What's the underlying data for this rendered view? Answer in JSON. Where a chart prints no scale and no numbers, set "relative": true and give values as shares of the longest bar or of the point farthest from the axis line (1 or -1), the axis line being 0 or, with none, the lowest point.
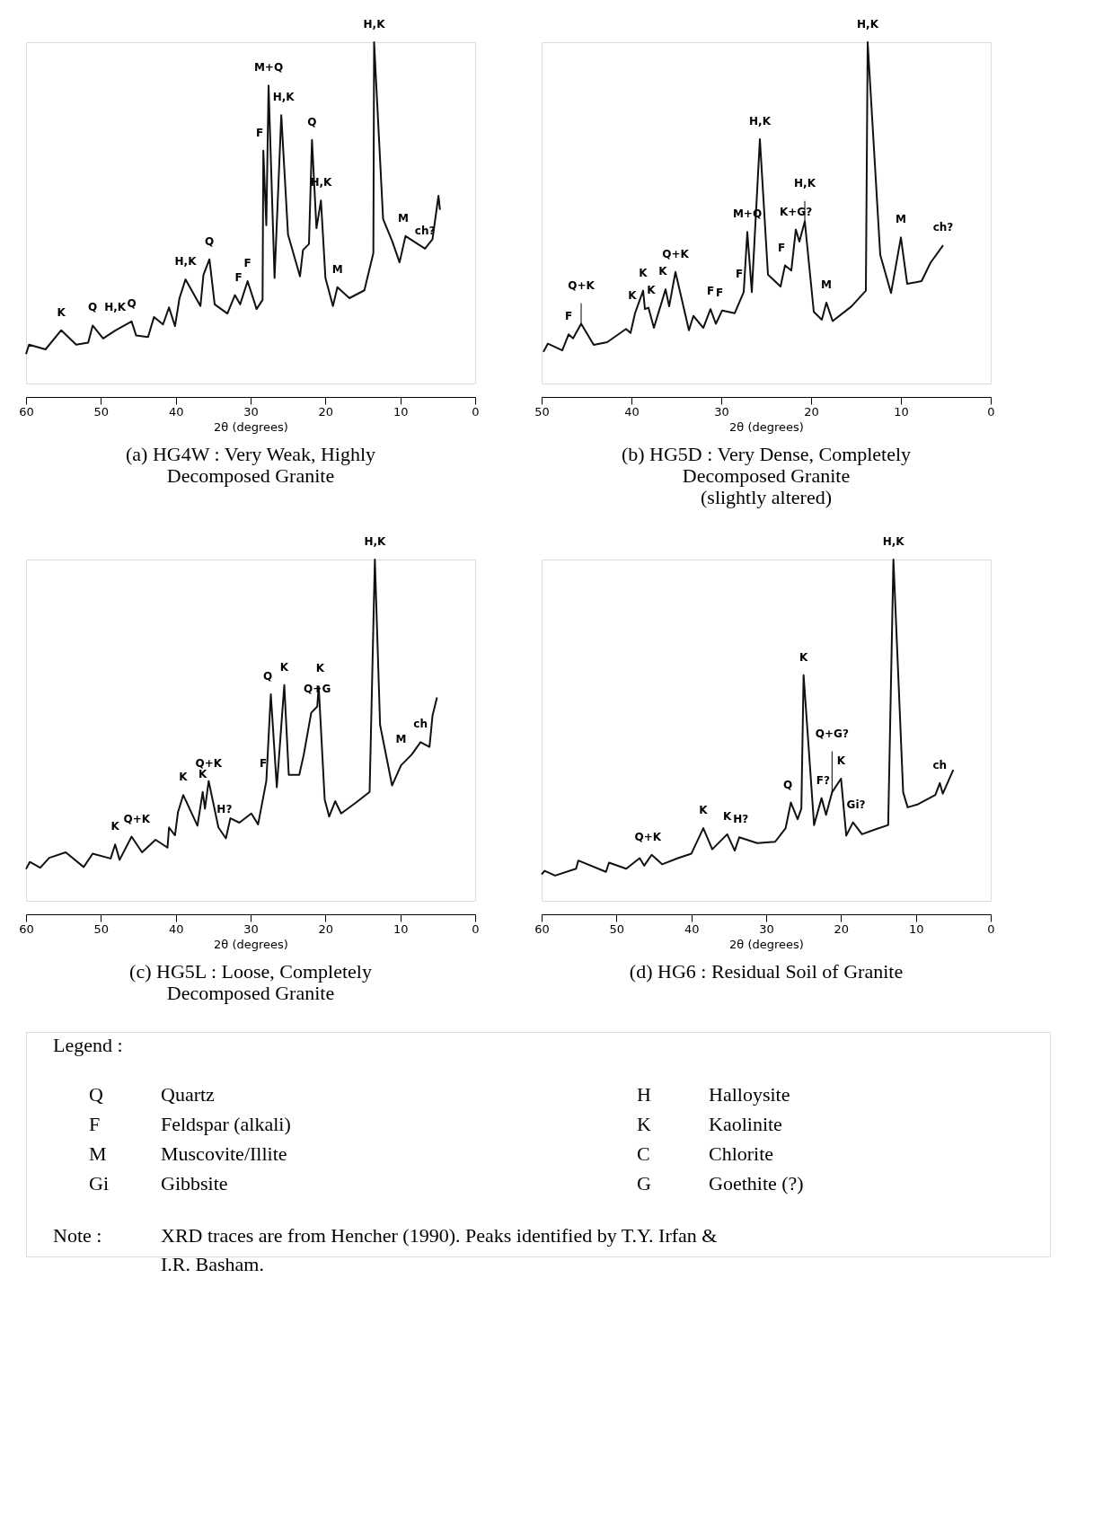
{
  "chart_data": [
    {
      "type": "line",
      "relative": true,
      "title": "(a) HG4W : Very Weak, Highly\nDecomposed Granite",
      "xlabel": "2θ (degrees)",
      "xlim": [
        60,
        0
      ],
      "xticks": [
        60,
        50,
        40,
        30,
        20,
        10,
        0
      ],
      "grid": false,
      "line_style": "solid",
      "x": [
        60,
        59.6,
        57.4,
        55.3,
        53.3,
        51.7,
        51.1,
        49.7,
        48.1,
        45.9,
        45.3,
        43.7,
        42.9,
        41.7,
        40.9,
        40.1,
        39.5,
        38.7,
        36.7,
        36.3,
        35.5,
        34.8,
        33.1,
        32.1,
        31.4,
        30.4,
        29.2,
        28.4,
        28.3,
        27.9,
        27.6,
        26.8,
        25.9,
        25.0,
        23.4,
        23.0,
        22.2,
        21.8,
        21.2,
        20.6,
        20.0,
        19.0,
        18.4,
        16.8,
        14.8,
        13.6,
        13.5,
        12.3,
        11.1,
        10.1,
        9.3,
        6.7,
        5.7,
        4.9,
        4.7
      ],
      "series": [
        {
          "color": "#111111",
          "values": [
            0.086,
            0.114,
            0.1,
            0.156,
            0.114,
            0.12,
            0.17,
            0.132,
            0.155,
            0.182,
            0.141,
            0.136,
            0.195,
            0.173,
            0.223,
            0.168,
            0.25,
            0.305,
            0.227,
            0.318,
            0.364,
            0.232,
            0.205,
            0.259,
            0.232,
            0.3,
            0.218,
            0.245,
            0.682,
            0.464,
            0.873,
            0.309,
            0.786,
            0.436,
            0.314,
            0.391,
            0.409,
            0.714,
            0.455,
            0.536,
            0.309,
            0.227,
            0.282,
            0.25,
            0.273,
            0.382,
            1.0,
            0.482,
            0.418,
            0.355,
            0.432,
            0.395,
            0.423,
            0.55,
            0.509
          ]
        }
      ],
      "annotations": [
        {
          "text": "K",
          "x": 55.3,
          "y": 0.156
        },
        {
          "text": "Q",
          "x": 51.1,
          "y": 0.17
        },
        {
          "text": "H,K",
          "x": 48.1,
          "y": 0.17
        },
        {
          "text": "Q",
          "x": 45.9,
          "y": 0.182
        },
        {
          "text": "H,K",
          "x": 38.7,
          "y": 0.305
        },
        {
          "text": "Q",
          "x": 35.5,
          "y": 0.364
        },
        {
          "text": "F",
          "x": 31.6,
          "y": 0.259
        },
        {
          "text": "F",
          "x": 30.4,
          "y": 0.3
        },
        {
          "text": "F",
          "x": 28.8,
          "y": 0.682
        },
        {
          "text": "M+Q",
          "x": 27.6,
          "y": 0.873
        },
        {
          "text": "H,K",
          "x": 25.6,
          "y": 0.786
        },
        {
          "text": "Q",
          "x": 21.8,
          "y": 0.714
        },
        {
          "text": "H,K",
          "x": 20.6,
          "y": 0.536
        },
        {
          "text": "M",
          "x": 18.4,
          "y": 0.282
        },
        {
          "text": "H,K",
          "x": 13.5,
          "y": 1.0
        },
        {
          "text": "M",
          "x": 9.6,
          "y": 0.432
        },
        {
          "text": "ch?",
          "x": 6.7,
          "y": 0.395
        }
      ]
    },
    {
      "type": "line",
      "relative": true,
      "title": "(b) HG5D : Very Dense, Completely\nDecomposed Granite\n(slightly altered)",
      "xlabel": "2θ (degrees)",
      "xlim": [
        50,
        0
      ],
      "xticks": [
        50,
        40,
        30,
        20,
        10,
        0
      ],
      "grid": false,
      "line_style": "solid",
      "x": [
        49.8,
        49.3,
        47.7,
        47.0,
        46.5,
        45.6,
        44.2,
        42.7,
        40.6,
        40.1,
        39.6,
        38.7,
        38.5,
        38.1,
        37.5,
        36.2,
        35.8,
        35.1,
        33.6,
        33.1,
        32.0,
        31.2,
        30.6,
        29.9,
        28.5,
        27.5,
        27.1,
        26.6,
        25.7,
        24.8,
        23.4,
        22.9,
        22.2,
        21.7,
        21.3,
        20.7,
        19.7,
        18.8,
        18.3,
        17.6,
        15.5,
        13.9,
        13.7,
        12.3,
        11.1,
        10.0,
        9.3,
        7.7,
        6.7,
        5.3
      ],
      "series": [
        {
          "color": "#111111",
          "values": [
            0.093,
            0.117,
            0.097,
            0.144,
            0.132,
            0.175,
            0.113,
            0.121,
            0.16,
            0.148,
            0.206,
            0.272,
            0.218,
            0.222,
            0.163,
            0.276,
            0.226,
            0.327,
            0.156,
            0.198,
            0.163,
            0.218,
            0.175,
            0.214,
            0.206,
            0.268,
            0.444,
            0.268,
            0.716,
            0.319,
            0.284,
            0.346,
            0.331,
            0.451,
            0.416,
            0.475,
            0.21,
            0.187,
            0.237,
            0.183,
            0.226,
            0.272,
            1.0,
            0.377,
            0.265,
            0.428,
            0.292,
            0.3,
            0.354,
            0.405
          ]
        }
      ],
      "annotations": [
        {
          "text": "F",
          "x": 47.0,
          "y": 0.144
        },
        {
          "text": "Q+K",
          "x": 45.6,
          "y": 0.175
        },
        {
          "text": "K",
          "x": 39.9,
          "y": 0.206
        },
        {
          "text": "K",
          "x": 38.7,
          "y": 0.272
        },
        {
          "text": "K",
          "x": 37.8,
          "y": 0.222
        },
        {
          "text": "K",
          "x": 36.5,
          "y": 0.276
        },
        {
          "text": "Q+K",
          "x": 35.1,
          "y": 0.327
        },
        {
          "text": "F",
          "x": 31.2,
          "y": 0.218
        },
        {
          "text": "F",
          "x": 30.2,
          "y": 0.214
        },
        {
          "text": "F",
          "x": 28.0,
          "y": 0.268
        },
        {
          "text": "M+Q",
          "x": 27.1,
          "y": 0.444
        },
        {
          "text": "H,K",
          "x": 25.7,
          "y": 0.716
        },
        {
          "text": "F",
          "x": 23.3,
          "y": 0.346
        },
        {
          "text": "K+G?",
          "x": 21.7,
          "y": 0.451
        },
        {
          "text": "H,K",
          "x": 20.7,
          "y": 0.475
        },
        {
          "text": "M",
          "x": 18.3,
          "y": 0.237
        },
        {
          "text": "H,K",
          "x": 13.7,
          "y": 1.0
        },
        {
          "text": "M",
          "x": 10.0,
          "y": 0.428
        },
        {
          "text": "ch?",
          "x": 5.3,
          "y": 0.405
        }
      ]
    },
    {
      "type": "line",
      "relative": true,
      "title": "(c) HG5L : Loose, Completely\nDecomposed Granite",
      "xlabel": "2θ (degrees)",
      "xlim": [
        60,
        0
      ],
      "xticks": [
        60,
        50,
        40,
        30,
        20,
        10,
        0
      ],
      "grid": false,
      "line_style": "solid",
      "x": [
        60,
        59.5,
        58.1,
        56.9,
        54.7,
        52.3,
        51.1,
        48.7,
        48.1,
        47.5,
        45.9,
        44.5,
        42.7,
        41.1,
        40.9,
        40.1,
        39.7,
        39.0,
        37.1,
        36.4,
        36.1,
        35.6,
        34.3,
        33.3,
        32.7,
        31.5,
        29.9,
        29.0,
        27.9,
        27.3,
        26.5,
        25.5,
        24.9,
        23.5,
        22.9,
        21.9,
        21.1,
        20.9,
        20.1,
        19.5,
        18.7,
        17.9,
        15.9,
        14.1,
        13.4,
        12.7,
        11.1,
        9.9,
        8.5,
        7.3,
        6.1,
        5.7,
        5.1
      ],
      "series": [
        {
          "color": "#111111",
          "values": [
            0.093,
            0.114,
            0.097,
            0.126,
            0.142,
            0.099,
            0.138,
            0.124,
            0.165,
            0.12,
            0.188,
            0.142,
            0.179,
            0.156,
            0.215,
            0.192,
            0.26,
            0.31,
            0.22,
            0.319,
            0.27,
            0.351,
            0.215,
            0.183,
            0.242,
            0.229,
            0.256,
            0.224,
            0.351,
            0.605,
            0.333,
            0.632,
            0.369,
            0.369,
            0.428,
            0.551,
            0.569,
            0.628,
            0.297,
            0.247,
            0.292,
            0.256,
            0.288,
            0.319,
            1.0,
            0.515,
            0.338,
            0.397,
            0.428,
            0.465,
            0.451,
            0.542,
            0.596
          ]
        }
      ],
      "annotations": [
        {
          "text": "K",
          "x": 48.1,
          "y": 0.165
        },
        {
          "text": "Q+K",
          "x": 45.2,
          "y": 0.188
        },
        {
          "text": "K",
          "x": 39.0,
          "y": 0.31
        },
        {
          "text": "K",
          "x": 36.4,
          "y": 0.319
        },
        {
          "text": "Q+K",
          "x": 35.6,
          "y": 0.351
        },
        {
          "text": "H?",
          "x": 33.5,
          "y": 0.215
        },
        {
          "text": "F",
          "x": 28.3,
          "y": 0.351
        },
        {
          "text": "Q",
          "x": 27.7,
          "y": 0.605
        },
        {
          "text": "K",
          "x": 25.5,
          "y": 0.632
        },
        {
          "text": "Q+G",
          "x": 21.1,
          "y": 0.569
        },
        {
          "text": "K",
          "x": 20.7,
          "y": 0.628
        },
        {
          "text": "H,K",
          "x": 13.4,
          "y": 1.0
        },
        {
          "text": "M",
          "x": 9.9,
          "y": 0.42
        },
        {
          "text": "ch",
          "x": 7.3,
          "y": 0.465
        }
      ]
    },
    {
      "type": "line",
      "relative": true,
      "title": "(d) HG6 : Residual Soil of Granite",
      "xlabel": "2θ (degrees)",
      "xlim": [
        60,
        0
      ],
      "xticks": [
        60,
        50,
        40,
        30,
        20,
        10,
        0
      ],
      "grid": false,
      "line_style": "solid",
      "x": [
        60,
        59.6,
        58.2,
        55.4,
        55.1,
        51.4,
        51.0,
        48.7,
        46.9,
        46.3,
        45.3,
        43.9,
        41.8,
        40.0,
        38.4,
        37.2,
        35.2,
        34.2,
        33.6,
        31.2,
        28.8,
        27.4,
        26.7,
        25.8,
        25.3,
        25.0,
        23.6,
        22.6,
        22.0,
        21.2,
        20.0,
        19.3,
        18.4,
        17.2,
        15.6,
        13.7,
        13.0,
        11.7,
        11.1,
        9.7,
        7.4,
        6.8,
        6.4,
        5.0
      ],
      "series": [
        {
          "color": "#111111",
          "values": [
            0.077,
            0.088,
            0.074,
            0.094,
            0.118,
            0.085,
            0.112,
            0.094,
            0.125,
            0.103,
            0.135,
            0.107,
            0.125,
            0.138,
            0.213,
            0.151,
            0.195,
            0.147,
            0.186,
            0.169,
            0.173,
            0.213,
            0.288,
            0.239,
            0.27,
            0.661,
            0.222,
            0.301,
            0.252,
            0.318,
            0.358,
            0.191,
            0.23,
            0.195,
            0.208,
            0.222,
            1.0,
            0.318,
            0.274,
            0.283,
            0.31,
            0.345,
            0.314,
            0.384
          ]
        }
      ],
      "annotations": [
        {
          "text": "Q+K",
          "x": 45.8,
          "y": 0.135
        },
        {
          "text": "K",
          "x": 38.4,
          "y": 0.213
        },
        {
          "text": "K",
          "x": 35.2,
          "y": 0.195
        },
        {
          "text": "H?",
          "x": 33.4,
          "y": 0.186
        },
        {
          "text": "Q",
          "x": 27.1,
          "y": 0.288
        },
        {
          "text": "K",
          "x": 25.0,
          "y": 0.661
        },
        {
          "text": "F?",
          "x": 22.4,
          "y": 0.301
        },
        {
          "text": "K",
          "x": 20.0,
          "y": 0.358
        },
        {
          "text": "Gi?",
          "x": 18.0,
          "y": 0.23
        },
        {
          "text": "H,K",
          "x": 13.0,
          "y": 1.0
        },
        {
          "text": "ch",
          "x": 6.8,
          "y": 0.345
        },
        {
          "text": "Q+G?",
          "x": 21.2,
          "y": 0.318
        }
      ]
    },
    {
      "type": "other",
      "title": "Legend :",
      "annotations": [
        "Q",
        "Quartz",
        "F",
        "Feldspar (alkali)",
        "M",
        "Muscovite/Illite",
        "Gi",
        "Gibbsite",
        "H",
        "Halloysite",
        "K",
        "Kaolinite",
        "C",
        "Chlorite",
        "G",
        "Goethite (?)",
        "Note :",
        "XRD traces are from Hencher (1990). Peaks identified by T.Y. Irfan &\nI.R. Basham."
      ]
    }
  ]
}
